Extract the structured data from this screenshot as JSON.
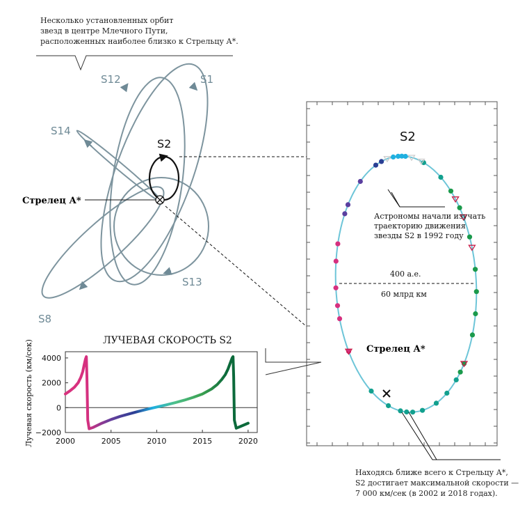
{
  "intro_caption": [
    "Несколько установленных орбит",
    "звезд в центре Млечного Пути,",
    "расположенных наиболее близко к Стрельцу А*."
  ],
  "orbit_labels": {
    "s12": "S12",
    "s1": "S1",
    "s14": "S14",
    "s2": "S2",
    "s13": "S13",
    "s8": "S8"
  },
  "center_label": "Стрелец А*",
  "panel": {
    "title": "S2",
    "note_lines": [
      "Астрономы начали изучать",
      "траекторию движения",
      "звезды S2 в 1992 году"
    ],
    "distance_top": "400 а.е.",
    "distance_bottom": "60 млрд км",
    "center_label": "Стрелец А*"
  },
  "bottom_caption": [
    "Находясь ближе всего к Стрельцу А*,",
    "S2 достигает максимальной скорости —",
    "7 000 км/сек (в 2002 и 2018 годах)."
  ],
  "colors": {
    "orbit_gray": "#7d949e",
    "orbit_path": "#6dc5d8",
    "magenta": "#d6307f",
    "purple": "#5a3f9f",
    "navy": "#2b3f94",
    "cyan": "#1fb0e0",
    "teal": "#12a08e",
    "green": "#1b9a4c",
    "dark_green": "#0c6a3b",
    "red": "#c81e4a"
  },
  "chart_data": {
    "type": "line",
    "title": "ЛУЧЕВАЯ СКОРОСТЬ S2",
    "xlabel": "",
    "ylabel": "Лучевая скорость (км/сек)",
    "xlim": [
      2000,
      2021
    ],
    "ylim": [
      -2000,
      4500
    ],
    "x_ticks": [
      "2000",
      "2005",
      "2010",
      "2015",
      "2020"
    ],
    "y_ticks": [
      "4000",
      "2000",
      "0",
      "−2000"
    ],
    "x_tick_values": [
      2000,
      2005,
      2010,
      2015,
      2020
    ],
    "y_tick_values": [
      4000,
      2000,
      0,
      -2000
    ],
    "series": [
      {
        "x": [
          2000.0,
          2000.5,
          2001.0,
          2001.4,
          2001.7,
          2001.9,
          2002.05,
          2002.2,
          2002.3,
          2002.36,
          2002.45,
          2002.6,
          2003.0,
          2004.0,
          2005.0,
          2006.0,
          2007.0,
          2008.0,
          2009.0,
          2010.0,
          2011.0,
          2012.0,
          2013.0,
          2014.0,
          2015.0,
          2016.0,
          2016.6,
          2017.1,
          2017.5,
          2017.8,
          2018.05,
          2018.25,
          2018.35,
          2018.42,
          2018.5,
          2018.7,
          2019.2,
          2020.0
        ],
        "y": [
          1100,
          1350,
          1650,
          2000,
          2450,
          2900,
          3400,
          3900,
          4100,
          2500,
          -1000,
          -1700,
          -1600,
          -1250,
          -950,
          -700,
          -500,
          -300,
          -120,
          50,
          220,
          400,
          600,
          830,
          1100,
          1500,
          1850,
          2250,
          2650,
          3100,
          3600,
          4000,
          4100,
          2500,
          -1000,
          -1650,
          -1500,
          -1250
        ]
      }
    ],
    "reference_line": 0
  }
}
